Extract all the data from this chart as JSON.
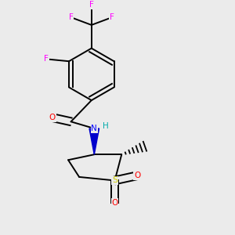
{
  "background_color": "#ebebeb",
  "colors": {
    "bond": "#000000",
    "F": "#ff00ff",
    "O": "#ff0000",
    "N": "#0000ff",
    "S": "#cccc00",
    "H": "#00aaaa",
    "C": "#000000"
  },
  "bond_width": 1.4,
  "figsize": [
    3.0,
    3.0
  ],
  "dpi": 100
}
